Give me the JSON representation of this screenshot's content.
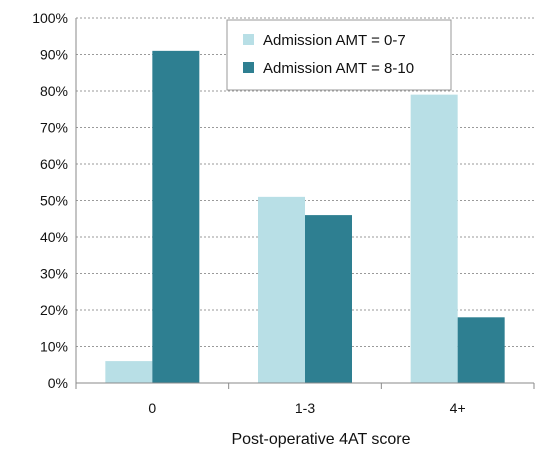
{
  "chart_data": {
    "type": "bar",
    "title": "",
    "xlabel": "Post-operative 4AT score",
    "ylabel": "",
    "categories": [
      "0",
      "1-3",
      "4+"
    ],
    "series": [
      {
        "name": "Admission AMT = 0-7",
        "color": "#b8dfe6",
        "values": [
          6,
          51,
          79
        ]
      },
      {
        "name": "Admission AMT = 8-10",
        "color": "#2e7f91",
        "values": [
          91,
          46,
          18
        ]
      }
    ],
    "ylim": [
      0,
      100
    ],
    "yticks": [
      "0%",
      "10%",
      "20%",
      "30%",
      "40%",
      "50%",
      "60%",
      "70%",
      "80%",
      "90%",
      "100%"
    ],
    "grid": true,
    "legend": "top-center"
  }
}
